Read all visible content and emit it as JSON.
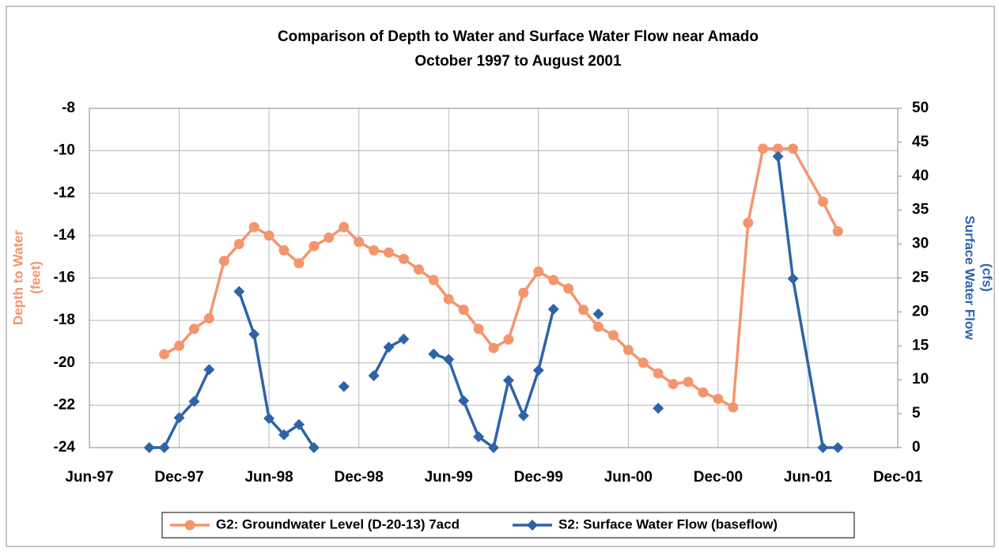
{
  "chart_data": {
    "type": "line",
    "title": "Comparison of Depth to Water and Surface Water Flow near Amado",
    "subtitle": "October 1997 to August 2001",
    "ylabel": [
      "Depth to Water",
      "(feet)"
    ],
    "y2label": [
      "Surface Water Flow",
      "(cfs)"
    ],
    "xlim": [
      "1997-06",
      "2001-12"
    ],
    "xticks": [
      {
        "value": "1997-06",
        "label": "Jun-97"
      },
      {
        "value": "1997-12",
        "label": "Dec-97"
      },
      {
        "value": "1998-06",
        "label": "Jun-98"
      },
      {
        "value": "1998-12",
        "label": "Dec-98"
      },
      {
        "value": "1999-06",
        "label": "Jun-99"
      },
      {
        "value": "1999-12",
        "label": "Dec-99"
      },
      {
        "value": "2000-06",
        "label": "Jun-00"
      },
      {
        "value": "2000-12",
        "label": "Dec-00"
      },
      {
        "value": "2001-06",
        "label": "Jun-01"
      },
      {
        "value": "2001-12",
        "label": "Dec-01"
      }
    ],
    "ylim": [
      -24,
      -8
    ],
    "yticks": [
      -24,
      -22,
      -20,
      -18,
      -16,
      -14,
      -12,
      -10,
      -8
    ],
    "y2lim": [
      0,
      50
    ],
    "y2ticks": [
      0,
      5,
      10,
      15,
      20,
      25,
      30,
      35,
      40,
      45,
      50
    ],
    "grid": true,
    "legend": "bottom",
    "series": [
      {
        "name": "G2: Groundwater Level (D-20-13) 7acd",
        "color": "#f4956e",
        "marker": "circle",
        "axis": "y",
        "x": [
          "1997-11",
          "1997-12",
          "1998-01",
          "1998-02",
          "1998-03",
          "1998-04",
          "1998-05",
          "1998-06",
          "1998-07",
          "1998-08",
          "1998-09",
          "1998-10",
          "1998-11",
          "1998-12",
          "1999-01",
          "1999-02",
          "1999-03",
          "1999-04",
          "1999-05",
          "1999-06",
          "1999-07",
          "1999-08",
          "1999-09",
          "1999-10",
          "1999-11",
          "1999-12",
          "2000-01",
          "2000-02",
          "2000-03",
          "2000-04",
          "2000-05",
          "2000-06",
          "2000-07",
          "2000-08",
          "2000-09",
          "2000-10",
          "2000-11",
          "2000-12",
          "2001-01",
          "2001-02",
          "2001-03",
          "2001-04",
          "2001-05",
          "2001-07",
          "2001-08"
        ],
        "values": [
          -19.6,
          -19.2,
          -18.4,
          -17.9,
          -15.2,
          -14.4,
          -13.6,
          -14.0,
          -14.7,
          -15.3,
          -14.5,
          -14.1,
          -13.6,
          -14.3,
          -14.7,
          -14.8,
          -15.1,
          -15.6,
          -16.1,
          -17.0,
          -17.5,
          -18.4,
          -19.3,
          -18.9,
          -16.7,
          -15.7,
          -16.1,
          -16.5,
          -17.5,
          -18.3,
          -18.7,
          -19.4,
          -20.0,
          -20.5,
          -21.0,
          -20.9,
          -21.4,
          -21.7,
          -22.1,
          -13.4,
          -9.9,
          -9.9,
          -9.9,
          -12.4,
          -13.8
        ]
      },
      {
        "name": "S2: Surface Water Flow (baseflow)",
        "color": "#2e63a8",
        "marker": "diamond",
        "axis": "y2",
        "x": [
          "1997-10",
          "1997-11",
          "1997-12",
          "1998-01",
          "1998-02",
          "1998-03",
          "1998-04",
          "1998-05",
          "1998-06",
          "1998-07",
          "1998-08",
          "1998-09",
          "1998-10",
          "1998-11",
          "1998-12",
          "1999-01",
          "1999-02",
          "1999-03",
          "1999-04",
          "1999-05",
          "1999-06",
          "1999-07",
          "1999-08",
          "1999-09",
          "1999-10",
          "1999-11",
          "1999-12",
          "2000-01",
          "2000-02",
          "2000-04",
          "2000-06",
          "2000-08",
          "2000-12",
          "2001-04",
          "2001-05",
          "2001-07",
          "2001-08"
        ],
        "values": [
          0,
          0,
          4.4,
          6.8,
          11.5,
          null,
          23.0,
          16.7,
          4.3,
          1.9,
          3.4,
          0,
          null,
          9.0,
          null,
          10.6,
          14.8,
          16.0,
          null,
          13.8,
          13.0,
          6.9,
          1.6,
          0,
          9.9,
          4.7,
          11.4,
          20.4,
          null,
          19.7,
          null,
          5.8,
          null,
          42.9,
          24.9,
          0,
          0
        ]
      }
    ]
  }
}
